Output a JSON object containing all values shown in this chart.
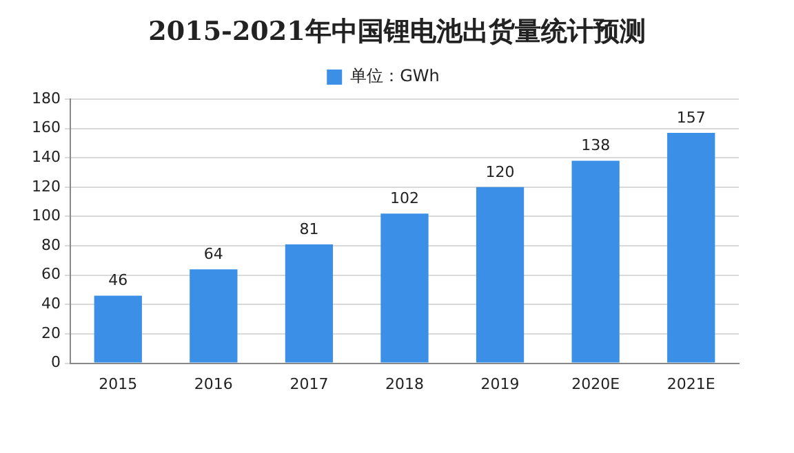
{
  "chart_data": {
    "type": "bar",
    "title": "2015-2021年中国锂电池出货量统计预测",
    "categories": [
      "2015",
      "2016",
      "2017",
      "2018",
      "2019",
      "2020E",
      "2021E"
    ],
    "series": [
      {
        "name": "单位：GWh",
        "color": "#3b8fe6",
        "values": [
          46,
          64,
          81,
          102,
          120,
          138,
          157
        ]
      }
    ],
    "ylim": [
      0,
      180
    ],
    "yticks": [
      0,
      20,
      40,
      60,
      80,
      100,
      120,
      140,
      160,
      180
    ],
    "grid": "y",
    "legend": "top",
    "data_labels": true
  }
}
